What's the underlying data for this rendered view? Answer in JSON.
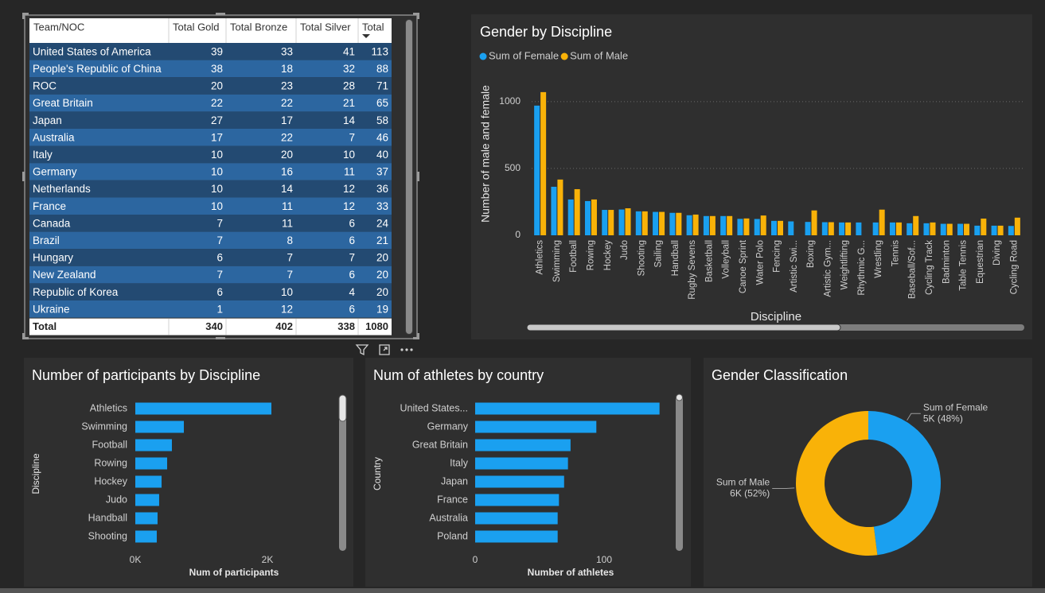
{
  "table": {
    "columns": [
      "Team/NOC",
      "Total Gold",
      "Total Bronze",
      "Total Silver",
      "Total"
    ],
    "rows": [
      [
        "United States of America",
        39,
        33,
        41,
        113
      ],
      [
        "People's Republic of China",
        38,
        18,
        32,
        88
      ],
      [
        "ROC",
        20,
        23,
        28,
        71
      ],
      [
        "Great Britain",
        22,
        22,
        21,
        65
      ],
      [
        "Japan",
        27,
        17,
        14,
        58
      ],
      [
        "Australia",
        17,
        22,
        7,
        46
      ],
      [
        "Italy",
        10,
        20,
        10,
        40
      ],
      [
        "Germany",
        10,
        16,
        11,
        37
      ],
      [
        "Netherlands",
        10,
        14,
        12,
        36
      ],
      [
        "France",
        10,
        11,
        12,
        33
      ],
      [
        "Canada",
        7,
        11,
        6,
        24
      ],
      [
        "Brazil",
        7,
        8,
        6,
        21
      ],
      [
        "Hungary",
        6,
        7,
        7,
        20
      ],
      [
        "New Zealand",
        7,
        7,
        6,
        20
      ],
      [
        "Republic of Korea",
        6,
        10,
        4,
        20
      ],
      [
        "Ukraine",
        1,
        12,
        6,
        19
      ]
    ],
    "total": [
      "Total",
      340,
      402,
      338,
      1080
    ]
  },
  "chart_data": [
    {
      "type": "bar",
      "title": "Gender by Discipline",
      "xlabel": "Discipline",
      "ylabel": "Number of male and female",
      "categories": [
        "Athletics",
        "Swimming",
        "Football",
        "Rowing",
        "Hockey",
        "Judo",
        "Shooting",
        "Sailing",
        "Handball",
        "Rugby Sevens",
        "Basketball",
        "Volleyball",
        "Canoe Sprint",
        "Water Polo",
        "Fencing",
        "Artistic Swi...",
        "Boxing",
        "Artistic Gym...",
        "Weightlifting",
        "Rhythmic G...",
        "Wrestling",
        "Tennis",
        "Baseball/Sof...",
        "Cycling Track",
        "Badminton",
        "Table Tennis",
        "Equestrian",
        "Diving",
        "Cycling Road"
      ],
      "series": [
        {
          "name": "Sum of Female",
          "color": "#1aa0f0",
          "values": [
            970,
            363,
            268,
            256,
            190,
            193,
            179,
            175,
            168,
            150,
            144,
            144,
            123,
            122,
            108,
            104,
            100,
            98,
            96,
            96,
            96,
            96,
            90,
            90,
            86,
            86,
            72,
            72,
            70
          ]
        },
        {
          "name": "Sum of Male",
          "color": "#f9b208",
          "values": [
            1071,
            417,
            345,
            268,
            190,
            202,
            179,
            175,
            168,
            155,
            144,
            144,
            126,
            148,
            108,
            0,
            186,
            98,
            96,
            0,
            192,
            96,
            144,
            96,
            86,
            86,
            125,
            72,
            132
          ]
        }
      ],
      "ylim": [
        0,
        1100
      ],
      "yticks": [
        0,
        500,
        1000
      ],
      "grid": true,
      "legend": "top-left"
    },
    {
      "type": "bar",
      "orientation": "horizontal",
      "title": "Number of participants by Discipline",
      "xlabel": "Num of participants",
      "ylabel": "Discipline",
      "categories": [
        "Athletics",
        "Swimming",
        "Football",
        "Rowing",
        "Hockey",
        "Judo",
        "Handball",
        "Shooting"
      ],
      "values": [
        2060,
        735,
        554,
        482,
        398,
        361,
        337,
        325
      ],
      "color": "#1aa0f0",
      "xlim": [
        0,
        2500
      ],
      "xticks": [
        {
          "value": 0,
          "label": "0K"
        },
        {
          "value": 2000,
          "label": "2K"
        }
      ]
    },
    {
      "type": "bar",
      "orientation": "horizontal",
      "title": "Num of athletes by country",
      "xlabel": "Number of athletes",
      "ylabel": "Country",
      "categories": [
        "United States...",
        "Germany",
        "Great Britain",
        "Italy",
        "Japan",
        "France",
        "Australia",
        "Poland"
      ],
      "values": [
        143,
        94,
        74,
        72,
        69,
        65,
        64,
        64
      ],
      "color": "#1aa0f0",
      "xlim": [
        0,
        150
      ],
      "xticks": [
        0,
        100
      ]
    },
    {
      "type": "donut",
      "title": "Gender Classification",
      "categories": [
        "Sum of Female",
        "Sum of Male"
      ],
      "values": [
        48,
        52
      ],
      "value_labels": [
        "5K (48%)",
        "6K (52%)"
      ],
      "colors": [
        "#1aa0f0",
        "#f9b208"
      ]
    }
  ]
}
